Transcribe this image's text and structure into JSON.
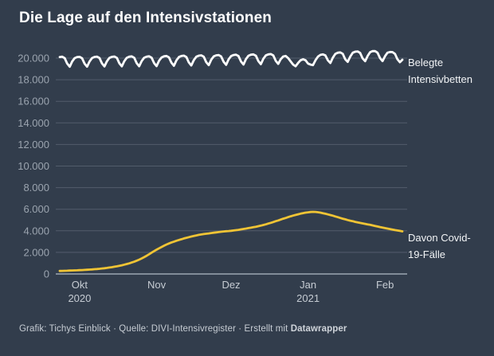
{
  "title": "Die Lage auf den Intensivstationen",
  "footer": {
    "text": "Grafik: Tichys Einblick · Quelle: DIVI-Intensivregister · Erstellt mit ",
    "bold": "Datawrapper"
  },
  "colors": {
    "background": "#323d4c",
    "title": "#ffffff",
    "beds": "#ffffff",
    "covid": "#f0c435",
    "grid": "#525d6b",
    "axis": "#8d97a3",
    "tick_label": "#9ba4af",
    "month_label": "#c6ccd3",
    "legend_text": "#f2f4f6",
    "footer_text": "#c6ccd3"
  },
  "chart_data": {
    "type": "line",
    "title": "Die Lage auf den Intensivstationen",
    "x_unit": "day",
    "x_start_date": "2020-09-23",
    "x_end_date": "2021-02-08",
    "ylim": [
      0,
      20800
    ],
    "grid": "horizontal",
    "legend_position": "right-of-line-ends",
    "y_ticks": [
      {
        "value": 0,
        "label": "0"
      },
      {
        "value": 2000,
        "label": "2.000"
      },
      {
        "value": 4000,
        "label": "4.000"
      },
      {
        "value": 6000,
        "label": "6.000"
      },
      {
        "value": 8000,
        "label": "8.000"
      },
      {
        "value": 10000,
        "label": "10.000"
      },
      {
        "value": 12000,
        "label": "12.000"
      },
      {
        "value": 14000,
        "label": "14.000"
      },
      {
        "value": 16000,
        "label": "16.000"
      },
      {
        "value": 18000,
        "label": "18.000"
      },
      {
        "value": 20000,
        "label": "20.000"
      }
    ],
    "x_ticks": [
      {
        "day_index": 8,
        "label": "Okt",
        "sublabel": "2020"
      },
      {
        "day_index": 39,
        "label": "Nov",
        "sublabel": ""
      },
      {
        "day_index": 69,
        "label": "Dez",
        "sublabel": ""
      },
      {
        "day_index": 100,
        "label": "Jan",
        "sublabel": "2021"
      },
      {
        "day_index": 131,
        "label": "Feb",
        "sublabel": ""
      }
    ],
    "series": [
      {
        "name": "Belegte Intensivbetten",
        "color_key": "beds",
        "values": [
          20100,
          20130,
          20000,
          19500,
          19200,
          19700,
          20000,
          20100,
          20120,
          19990,
          19480,
          19210,
          19690,
          20010,
          20110,
          20140,
          20010,
          19510,
          19230,
          19710,
          20020,
          20120,
          20150,
          20020,
          19520,
          19240,
          19720,
          20030,
          20130,
          20160,
          20030,
          19530,
          19250,
          19730,
          20040,
          20140,
          20170,
          20040,
          19540,
          19260,
          19760,
          20070,
          20170,
          20200,
          20070,
          19570,
          19290,
          19790,
          20100,
          20200,
          20230,
          20100,
          19600,
          19320,
          19820,
          20130,
          20230,
          20260,
          20130,
          19630,
          19350,
          19850,
          20160,
          20260,
          20290,
          20160,
          19660,
          19380,
          19880,
          20190,
          20290,
          20320,
          20190,
          19690,
          19410,
          19910,
          20220,
          20320,
          20350,
          20220,
          19720,
          19440,
          19940,
          20250,
          20350,
          20380,
          20250,
          19750,
          19470,
          19900,
          20150,
          20200,
          20000,
          19700,
          19400,
          19250,
          19550,
          19800,
          19900,
          19800,
          19500,
          19400,
          19350,
          19800,
          20150,
          20300,
          20350,
          20250,
          19800,
          19550,
          20050,
          20400,
          20500,
          20530,
          20400,
          19900,
          19650,
          20150,
          20500,
          20600,
          20620,
          20480,
          19980,
          19720,
          20200,
          20550,
          20650,
          20660,
          20500,
          20000,
          19730,
          20180,
          20500,
          20570,
          20560,
          20400,
          19900,
          19620,
          19850
        ]
      },
      {
        "name": "Davon Covid-19-Fälle",
        "color_key": "covid",
        "values": [
          280,
          288,
          296,
          305,
          314,
          323,
          332,
          342,
          352,
          364,
          377,
          391,
          406,
          422,
          440,
          460,
          483,
          508,
          535,
          564,
          595,
          630,
          668,
          710,
          755,
          805,
          860,
          920,
          985,
          1060,
          1140,
          1230,
          1330,
          1440,
          1560,
          1690,
          1830,
          1980,
          2120,
          2250,
          2380,
          2500,
          2620,
          2730,
          2830,
          2920,
          3000,
          3080,
          3150,
          3220,
          3290,
          3350,
          3410,
          3470,
          3520,
          3570,
          3620,
          3660,
          3700,
          3730,
          3760,
          3790,
          3820,
          3850,
          3880,
          3910,
          3940,
          3960,
          3980,
          4000,
          4030,
          4060,
          4090,
          4130,
          4170,
          4210,
          4250,
          4290,
          4330,
          4380,
          4430,
          4480,
          4540,
          4600,
          4670,
          4740,
          4810,
          4890,
          4960,
          5040,
          5120,
          5190,
          5270,
          5340,
          5410,
          5470,
          5530,
          5590,
          5640,
          5680,
          5710,
          5740,
          5760,
          5750,
          5720,
          5680,
          5630,
          5580,
          5520,
          5460,
          5400,
          5330,
          5260,
          5190,
          5120,
          5060,
          5000,
          4940,
          4890,
          4830,
          4780,
          4730,
          4690,
          4640,
          4590,
          4550,
          4500,
          4450,
          4400,
          4350,
          4300,
          4250,
          4210,
          4160,
          4120,
          4070,
          4030,
          3990,
          3950
        ]
      }
    ]
  }
}
